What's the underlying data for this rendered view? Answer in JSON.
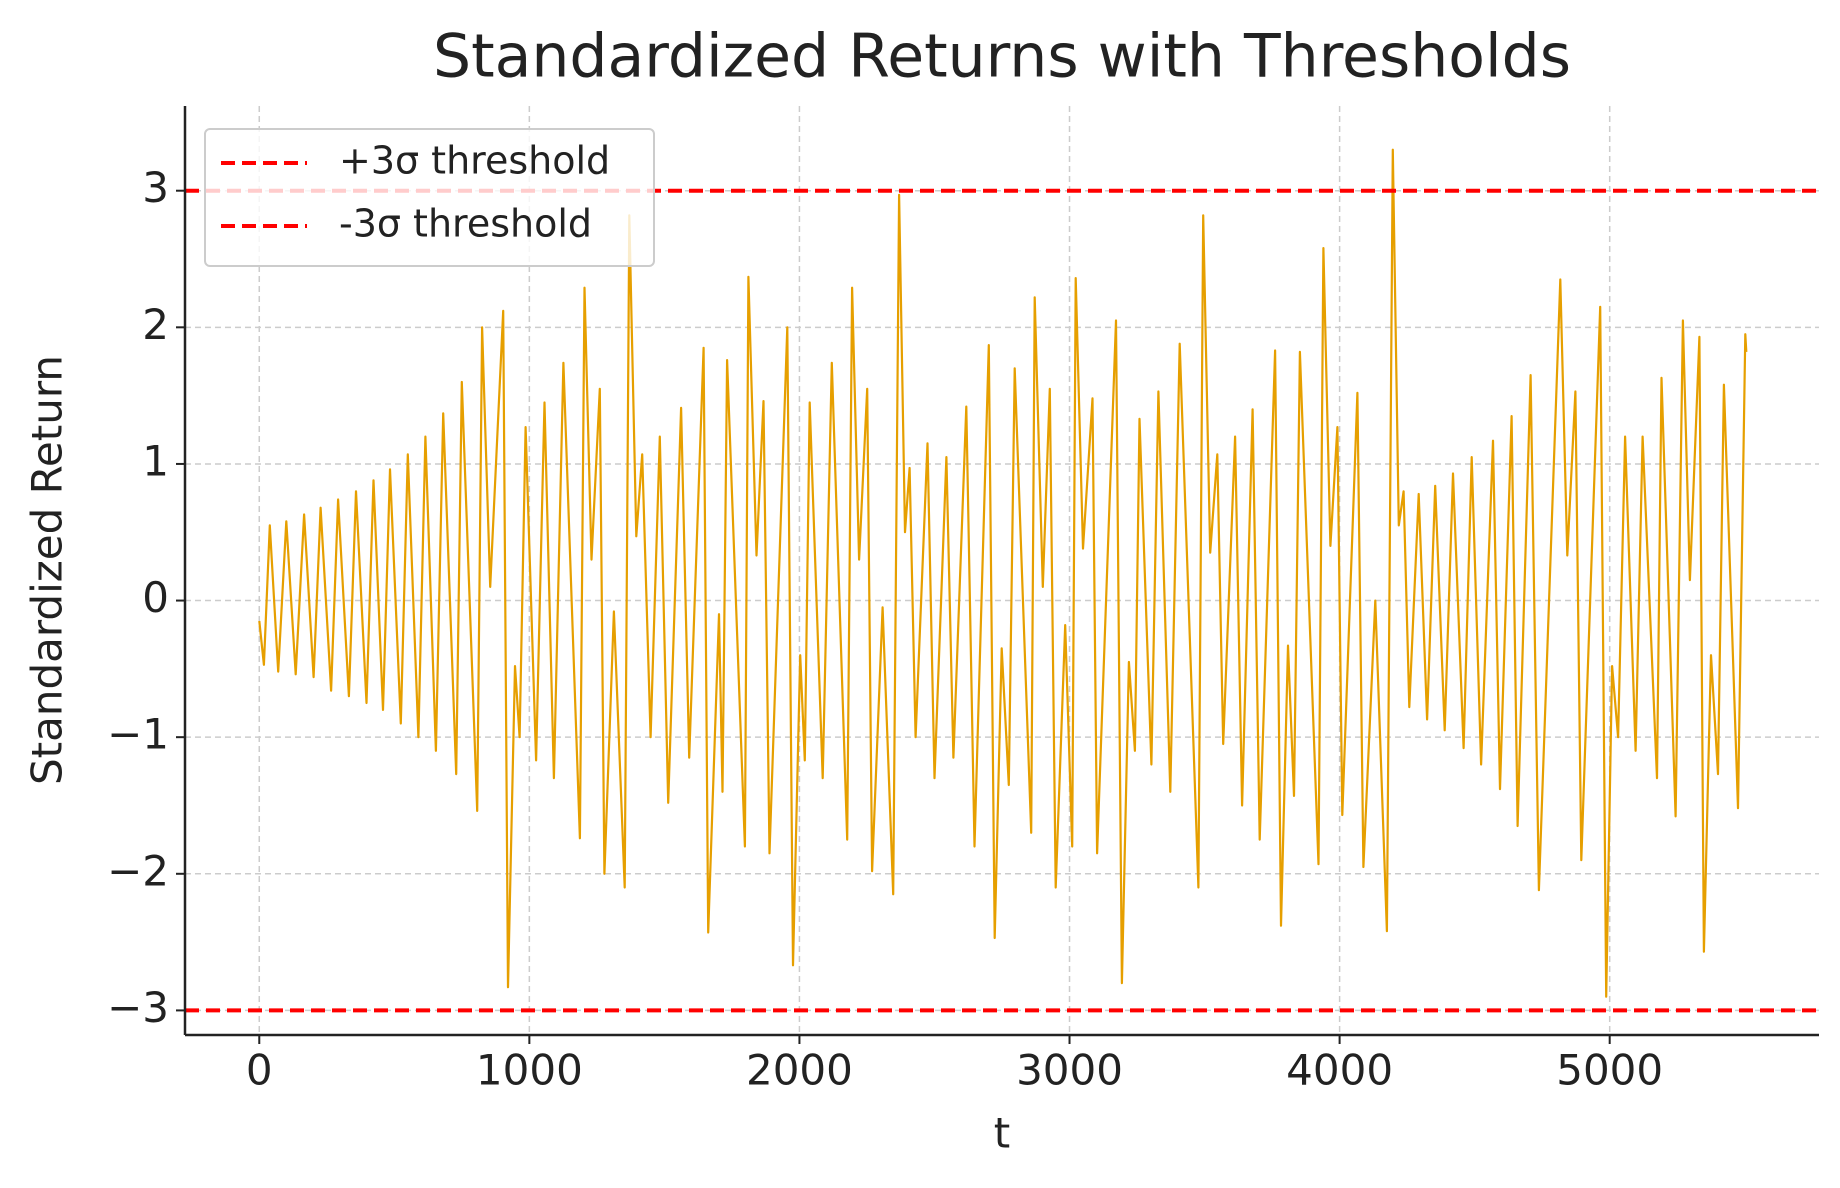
{
  "chart_data": {
    "type": "line",
    "title": "Standardized Returns with Thresholds",
    "x_label": "t",
    "y_label": "Standardized Return",
    "x": [
      0,
      17,
      39,
      70,
      100,
      135,
      166,
      201,
      227,
      266,
      292,
      332,
      358,
      397,
      423,
      458,
      484,
      524,
      550,
      589,
      615,
      654,
      681,
      729,
      750,
      807,
      825,
      855,
      903,
      921,
      947,
      964,
      986,
      1025,
      1056,
      1091,
      1126,
      1187,
      1204,
      1230,
      1261,
      1278,
      1313,
      1353,
      1370,
      1396,
      1418,
      1449,
      1483,
      1514,
      1562,
      1592,
      1645,
      1662,
      1702,
      1715,
      1732,
      1798,
      1811,
      1841,
      1867,
      1889,
      1955,
      1976,
      2003,
      2020,
      2038,
      2086,
      2120,
      2177,
      2195,
      2221,
      2251,
      2269,
      2308,
      2347,
      2369,
      2391,
      2408,
      2430,
      2474,
      2500,
      2544,
      2570,
      2618,
      2648,
      2701,
      2723,
      2749,
      2775,
      2797,
      2858,
      2871,
      2901,
      2927,
      2949,
      2984,
      3010,
      3023,
      3050,
      3085,
      3102,
      3172,
      3194,
      3220,
      3242,
      3259,
      3303,
      3329,
      3373,
      3408,
      3477,
      3495,
      3521,
      3547,
      3569,
      3613,
      3639,
      3678,
      3704,
      3761,
      3783,
      3809,
      3831,
      3853,
      3922,
      3940,
      3966,
      3992,
      4010,
      4066,
      4088,
      4132,
      4175,
      4197,
      4219,
      4237,
      4258,
      4293,
      4324,
      4354,
      4389,
      4420,
      4459,
      4489,
      4524,
      4568,
      4594,
      4637,
      4659,
      4707,
      4738,
      4817,
      4843,
      4873,
      4895,
      4965,
      4987,
      5009,
      5031,
      5057,
      5096,
      5122,
      5175,
      5192,
      5244,
      5271,
      5297,
      5332,
      5349,
      5375,
      5401,
      5423,
      5475,
      5502,
      5506
    ],
    "series": [
      {
        "color": "#e69f00",
        "values": [
          -0.15,
          -0.47,
          0.55,
          -0.52,
          0.58,
          -0.54,
          0.63,
          -0.56,
          0.68,
          -0.66,
          0.74,
          -0.7,
          0.8,
          -0.75,
          0.88,
          -0.8,
          0.96,
          -0.9,
          1.07,
          -1.0,
          1.2,
          -1.1,
          1.37,
          -1.27,
          1.6,
          -1.54,
          2.0,
          0.1,
          2.12,
          -2.83,
          -0.48,
          -1.0,
          1.27,
          -1.17,
          1.45,
          -1.3,
          1.74,
          -1.74,
          2.29,
          0.3,
          1.55,
          -2.0,
          -0.08,
          -2.1,
          2.82,
          0.47,
          1.07,
          -1.0,
          1.2,
          -1.48,
          1.41,
          -1.15,
          1.85,
          -2.43,
          -0.1,
          -1.4,
          1.76,
          -1.8,
          2.37,
          0.33,
          1.46,
          -1.85,
          2.0,
          -2.67,
          -0.4,
          -1.17,
          1.45,
          -1.3,
          1.74,
          -1.75,
          2.29,
          0.3,
          1.55,
          -1.98,
          -0.05,
          -2.15,
          2.97,
          0.5,
          0.97,
          -1.0,
          1.15,
          -1.3,
          1.05,
          -1.15,
          1.42,
          -1.8,
          1.87,
          -2.47,
          -0.35,
          -1.35,
          1.7,
          -1.7,
          2.22,
          0.1,
          1.55,
          -2.1,
          -0.18,
          -1.8,
          2.36,
          0.38,
          1.48,
          -1.85,
          2.05,
          -2.8,
          -0.45,
          -1.1,
          1.33,
          -1.2,
          1.53,
          -1.4,
          1.88,
          -2.1,
          2.82,
          0.35,
          1.07,
          -1.05,
          1.2,
          -1.5,
          1.4,
          -1.75,
          1.83,
          -2.38,
          -0.33,
          -1.43,
          1.82,
          -1.93,
          2.58,
          0.4,
          1.27,
          -1.57,
          1.52,
          -1.95,
          0.0,
          -2.42,
          3.3,
          0.55,
          0.8,
          -0.78,
          0.78,
          -0.87,
          0.84,
          -0.95,
          0.93,
          -1.08,
          1.05,
          -1.2,
          1.17,
          -1.38,
          1.35,
          -1.65,
          1.65,
          -2.12,
          2.35,
          0.33,
          1.53,
          -1.9,
          2.15,
          -2.9,
          -0.48,
          -1.0,
          1.2,
          -1.1,
          1.2,
          -1.3,
          1.63,
          -1.58,
          2.05,
          0.15,
          1.93,
          -2.57,
          -0.4,
          -1.27,
          1.58,
          -1.52,
          1.95,
          1.82
        ]
      }
    ],
    "thresholds": [
      {
        "name": "+3σ threshold",
        "value": 3,
        "color": "#ff0000"
      },
      {
        "name": "-3σ threshold",
        "value": -3,
        "color": "#ff0000"
      }
    ],
    "xlim": [
      -275,
      5775
    ],
    "ylim": [
      -3.18,
      3.62
    ],
    "xticks": [
      0,
      1000,
      2000,
      3000,
      4000,
      5000
    ],
    "yticks": [
      {
        "value": -3,
        "label": "−3"
      },
      {
        "value": -2,
        "label": "−2"
      },
      {
        "value": -1,
        "label": "−1"
      },
      0,
      1,
      2,
      3
    ],
    "grid": true,
    "legend": "upper left"
  }
}
